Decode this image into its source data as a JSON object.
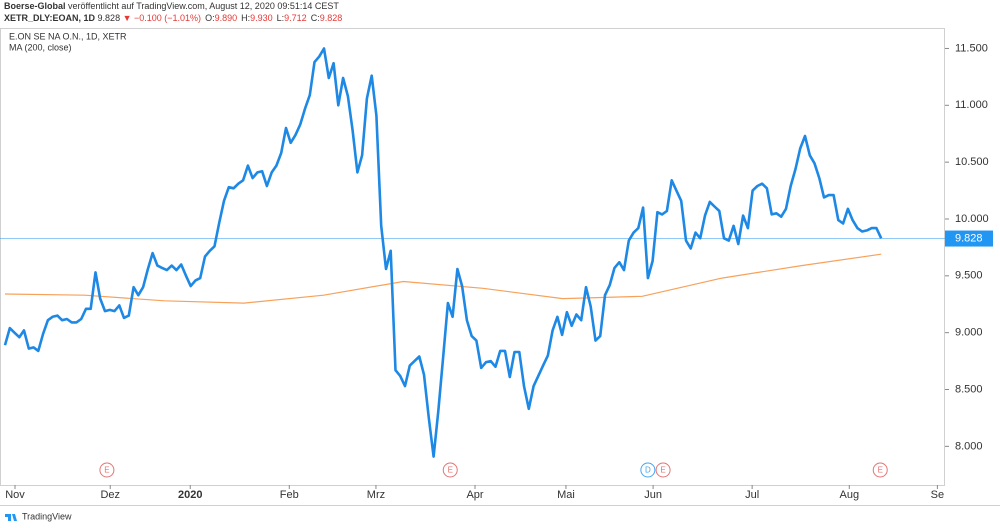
{
  "header": {
    "publisher": "Boerse-Global",
    "published": "veröffentlicht auf TradingView.com, August 12, 2020 09:51:14 CEST",
    "symbol": "XETR_DLY:EOAN, 1D",
    "last": "9.828",
    "change": "▼ −0.100 (−1.01%)",
    "ohlc": [
      {
        "key": "O:",
        "value": "9.890"
      },
      {
        "key": "H:",
        "value": "9.930"
      },
      {
        "key": "L:",
        "value": "9.712"
      },
      {
        "key": "C:",
        "value": "9.828"
      }
    ]
  },
  "chart_data": {
    "type": "line",
    "title": "E.ON SE NA O.N., 1D, XETR",
    "series": [
      {
        "name": "E.ON SE NA O.N.",
        "color": "#1e88e5",
        "values": [
          8.89,
          9.04,
          9.0,
          8.96,
          9.02,
          8.86,
          8.87,
          8.84,
          8.99,
          9.11,
          9.14,
          9.15,
          9.11,
          9.12,
          9.09,
          9.09,
          9.12,
          9.21,
          9.21,
          9.53,
          9.3,
          9.19,
          9.2,
          9.19,
          9.24,
          9.13,
          9.15,
          9.4,
          9.33,
          9.4,
          9.56,
          9.7,
          9.59,
          9.57,
          9.55,
          9.59,
          9.55,
          9.6,
          9.5,
          9.41,
          9.46,
          9.48,
          9.67,
          9.72,
          9.76,
          9.97,
          10.16,
          10.28,
          10.27,
          10.31,
          10.34,
          10.47,
          10.36,
          10.41,
          10.42,
          10.29,
          10.41,
          10.47,
          10.58,
          10.8,
          10.67,
          10.74,
          10.83,
          10.97,
          11.09,
          11.38,
          11.43,
          11.5,
          11.24,
          11.37,
          11.0,
          11.24,
          11.08,
          10.78,
          10.41,
          10.56,
          11.06,
          11.26,
          10.91,
          9.94,
          9.56,
          9.72,
          8.67,
          8.62,
          8.53,
          8.71,
          8.75,
          8.79,
          8.63,
          8.25,
          7.91,
          8.31,
          8.78,
          9.26,
          9.14,
          9.56,
          9.41,
          9.11,
          8.97,
          8.93,
          8.69,
          8.74,
          8.75,
          8.7,
          8.84,
          8.84,
          8.61,
          8.83,
          8.83,
          8.53,
          8.33,
          8.53,
          8.62,
          8.71,
          8.8,
          9.02,
          9.14,
          8.98,
          9.18,
          9.06,
          9.16,
          9.11,
          9.4,
          9.23,
          8.93,
          8.97,
          9.33,
          9.42,
          9.57,
          9.62,
          9.55,
          9.81,
          9.88,
          9.92,
          10.1,
          9.48,
          9.63,
          10.06,
          10.04,
          10.07,
          10.34,
          10.25,
          10.16,
          9.81,
          9.74,
          9.88,
          9.83,
          10.03,
          10.15,
          10.11,
          10.07,
          9.83,
          9.81,
          9.94,
          9.78,
          10.03,
          9.92,
          10.25,
          10.29,
          10.31,
          10.27,
          10.04,
          10.05,
          10.02,
          10.09,
          10.29,
          10.44,
          10.62,
          10.73,
          10.56,
          10.49,
          10.36,
          10.19,
          10.21,
          10.21,
          9.99,
          9.96,
          10.09,
          9.99,
          9.92,
          9.89,
          9.9,
          9.92,
          9.92,
          9.83
        ]
      },
      {
        "name": "MA (200, close)",
        "color": "#f7a15a",
        "values": [
          9.34,
          9.33,
          9.28,
          9.26,
          9.33,
          9.45,
          9.39,
          9.3,
          9.32,
          9.48,
          9.59,
          9.69
        ]
      }
    ],
    "price_line": {
      "value": 9.828,
      "label": "9.828",
      "color": "#2196f3"
    },
    "xlim": [
      -1.05,
      197.4
    ],
    "xticks": [
      {
        "value": 2.1,
        "label": "Nov"
      },
      {
        "value": 22.1,
        "label": "Dez"
      },
      {
        "value": 38.9,
        "label": "2020"
      },
      {
        "value": 59.7,
        "label": "Feb"
      },
      {
        "value": 77.9,
        "label": "Mrz"
      },
      {
        "value": 98.7,
        "label": "Apr"
      },
      {
        "value": 117.8,
        "label": "Mai"
      },
      {
        "value": 136.1,
        "label": "Jun"
      },
      {
        "value": 156.9,
        "label": "Jul"
      },
      {
        "value": 177.3,
        "label": "Aug"
      },
      {
        "value": 195.8,
        "label": "Se"
      }
    ],
    "ylim": [
      7.66,
      11.68
    ],
    "yticks": [
      {
        "value": 8,
        "label": "8.000"
      },
      {
        "value": 8.5,
        "label": "8.500"
      },
      {
        "value": 9,
        "label": "9.000"
      },
      {
        "value": 9.5,
        "label": "9.500"
      },
      {
        "value": 10,
        "label": "10.000"
      },
      {
        "value": 10.5,
        "label": "10.500"
      },
      {
        "value": 11,
        "label": "11.000"
      },
      {
        "value": 11.5,
        "label": "11.500"
      }
    ],
    "events": [
      {
        "label": "E",
        "x": 21.4,
        "color": "#e57373"
      },
      {
        "label": "E",
        "x": 93.5,
        "color": "#e57373"
      },
      {
        "label": "D",
        "x": 135,
        "color": "#42a5f5"
      },
      {
        "label": "E",
        "x": 138.2,
        "color": "#e57373"
      },
      {
        "label": "E",
        "x": 183.8,
        "color": "#e57373"
      }
    ]
  },
  "footer": {
    "brand": "TradingView"
  }
}
